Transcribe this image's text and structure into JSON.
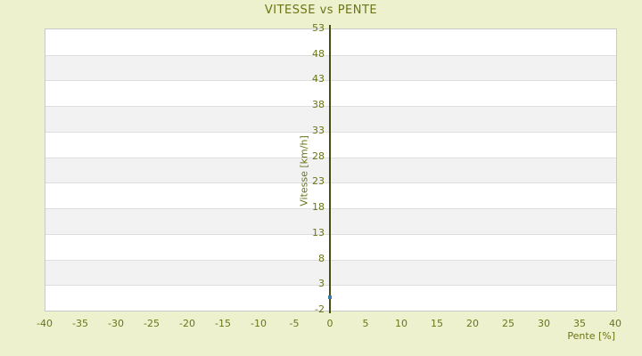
{
  "title": "VITESSE vs PENTE",
  "colors": {
    "background": "#edf1cd",
    "plot_background": "#ffffff",
    "band_alternate": "#f2f2f2",
    "band_line": "#dedede",
    "plot_border": "#c9c9c9",
    "text_olive": "#6b7517",
    "axis_line": "#474f10",
    "marker_blue": "#3e7bad"
  },
  "chart_data": {
    "type": "scatter",
    "title": "VITESSE vs PENTE",
    "xlabel": "Pente [%]",
    "ylabel": "Vitesse [km/h]",
    "xlim": [
      -40,
      40
    ],
    "ylim": [
      -2,
      53
    ],
    "x_ticks": [
      -40,
      -35,
      -30,
      -25,
      -20,
      -15,
      -10,
      -5,
      0,
      5,
      10,
      15,
      20,
      25,
      30,
      35,
      40
    ],
    "y_ticks": [
      53,
      48,
      43,
      38,
      33,
      28,
      23,
      18,
      13,
      8,
      3,
      -2
    ],
    "grid": "alternating-horizontal-bands",
    "legend": "none",
    "y_axis_drawn_at_x": 0,
    "series": [
      {
        "name": "Vitesse",
        "marker": "square",
        "color": "#3e7bad",
        "points": [
          {
            "x": 0,
            "y": 0.5
          }
        ]
      }
    ]
  }
}
